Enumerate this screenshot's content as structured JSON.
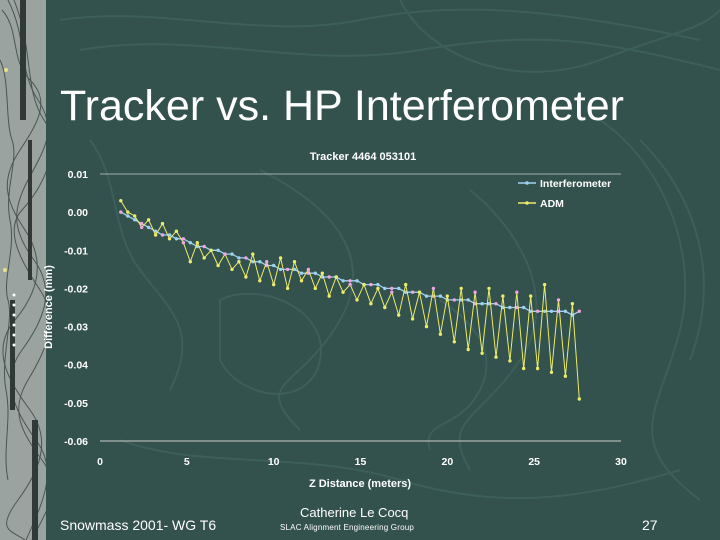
{
  "slide": {
    "title": "Tracker vs. HP Interferometer",
    "footer_left": "Snowmass 2001- WG T6",
    "footer_author": "Catherine Le Cocq",
    "footer_group": "SLAC  Alignment Engineering Group",
    "page_number": "27"
  },
  "colors": {
    "background": "#33514d",
    "contour": "#3d5f5a",
    "interferometer": "#9fd2f2",
    "adm": "#ecec6a",
    "marker_pink": "#f2a6e0",
    "axis": "#cccccc",
    "text": "#ffffff"
  },
  "chart_data": {
    "type": "line",
    "title": "Tracker 4464 053101",
    "xlabel": "Z Distance (meters)",
    "ylabel": "Difference (mm)",
    "xlim": [
      0,
      30
    ],
    "ylim": [
      -0.06,
      0.01
    ],
    "x_ticks": [
      "0",
      "5",
      "10",
      "15",
      "20",
      "25",
      "30"
    ],
    "y_ticks": [
      "0.01",
      "0.00",
      "-0.01",
      "-0.02",
      "-0.03",
      "-0.04",
      "-0.05",
      "-0.06"
    ],
    "grid": false,
    "legend_position": "top-right",
    "series": [
      {
        "name": "Interferometer",
        "color": "#9fd2f2",
        "points": [
          [
            1.2,
            0.0
          ],
          [
            1.6,
            -0.001
          ],
          [
            2.0,
            -0.002
          ],
          [
            2.4,
            -0.003
          ],
          [
            2.8,
            -0.004
          ],
          [
            3.2,
            -0.005
          ],
          [
            3.6,
            -0.006
          ],
          [
            4.0,
            -0.006
          ],
          [
            4.4,
            -0.007
          ],
          [
            4.8,
            -0.007
          ],
          [
            5.2,
            -0.008
          ],
          [
            5.6,
            -0.009
          ],
          [
            6.0,
            -0.009
          ],
          [
            6.4,
            -0.01
          ],
          [
            6.8,
            -0.01
          ],
          [
            7.2,
            -0.011
          ],
          [
            7.6,
            -0.011
          ],
          [
            8.0,
            -0.012
          ],
          [
            8.4,
            -0.012
          ],
          [
            8.8,
            -0.013
          ],
          [
            9.2,
            -0.013
          ],
          [
            9.6,
            -0.014
          ],
          [
            10.0,
            -0.014
          ],
          [
            10.4,
            -0.015
          ],
          [
            10.8,
            -0.015
          ],
          [
            11.2,
            -0.015
          ],
          [
            11.6,
            -0.016
          ],
          [
            12.0,
            -0.016
          ],
          [
            12.4,
            -0.016
          ],
          [
            12.8,
            -0.017
          ],
          [
            13.2,
            -0.017
          ],
          [
            13.6,
            -0.017
          ],
          [
            14.0,
            -0.018
          ],
          [
            14.4,
            -0.018
          ],
          [
            14.8,
            -0.018
          ],
          [
            15.2,
            -0.019
          ],
          [
            15.6,
            -0.019
          ],
          [
            16.0,
            -0.019
          ],
          [
            16.4,
            -0.02
          ],
          [
            16.8,
            -0.02
          ],
          [
            17.2,
            -0.02
          ],
          [
            17.6,
            -0.021
          ],
          [
            18.0,
            -0.021
          ],
          [
            18.4,
            -0.021
          ],
          [
            18.8,
            -0.022
          ],
          [
            19.2,
            -0.022
          ],
          [
            19.6,
            -0.022
          ],
          [
            20.0,
            -0.023
          ],
          [
            20.4,
            -0.023
          ],
          [
            20.8,
            -0.023
          ],
          [
            21.2,
            -0.023
          ],
          [
            21.6,
            -0.024
          ],
          [
            22.0,
            -0.024
          ],
          [
            22.4,
            -0.024
          ],
          [
            22.8,
            -0.024
          ],
          [
            23.2,
            -0.025
          ],
          [
            23.6,
            -0.025
          ],
          [
            24.0,
            -0.025
          ],
          [
            24.4,
            -0.025
          ],
          [
            24.8,
            -0.026
          ],
          [
            25.2,
            -0.026
          ],
          [
            25.6,
            -0.026
          ],
          [
            26.0,
            -0.026
          ],
          [
            26.4,
            -0.026
          ],
          [
            26.8,
            -0.026
          ],
          [
            27.2,
            -0.027
          ],
          [
            27.6,
            -0.026
          ]
        ]
      },
      {
        "name": "ADM",
        "color": "#ecec6a",
        "points": [
          [
            1.2,
            0.003
          ],
          [
            1.6,
            0.0
          ],
          [
            2.0,
            -0.001
          ],
          [
            2.4,
            -0.004
          ],
          [
            2.8,
            -0.002
          ],
          [
            3.2,
            -0.006
          ],
          [
            3.6,
            -0.003
          ],
          [
            4.0,
            -0.007
          ],
          [
            4.4,
            -0.005
          ],
          [
            4.8,
            -0.008
          ],
          [
            5.2,
            -0.013
          ],
          [
            5.6,
            -0.008
          ],
          [
            6.0,
            -0.012
          ],
          [
            6.4,
            -0.01
          ],
          [
            6.8,
            -0.014
          ],
          [
            7.2,
            -0.011
          ],
          [
            7.6,
            -0.015
          ],
          [
            8.0,
            -0.013
          ],
          [
            8.4,
            -0.017
          ],
          [
            8.8,
            -0.011
          ],
          [
            9.2,
            -0.018
          ],
          [
            9.6,
            -0.013
          ],
          [
            10.0,
            -0.019
          ],
          [
            10.4,
            -0.012
          ],
          [
            10.8,
            -0.02
          ],
          [
            11.2,
            -0.013
          ],
          [
            11.6,
            -0.018
          ],
          [
            12.0,
            -0.015
          ],
          [
            12.4,
            -0.02
          ],
          [
            12.8,
            -0.016
          ],
          [
            13.2,
            -0.022
          ],
          [
            13.6,
            -0.017
          ],
          [
            14.0,
            -0.021
          ],
          [
            14.4,
            -0.019
          ],
          [
            14.8,
            -0.023
          ],
          [
            15.2,
            -0.019
          ],
          [
            15.6,
            -0.024
          ],
          [
            16.0,
            -0.02
          ],
          [
            16.4,
            -0.025
          ],
          [
            16.8,
            -0.021
          ],
          [
            17.2,
            -0.027
          ],
          [
            17.6,
            -0.019
          ],
          [
            18.0,
            -0.028
          ],
          [
            18.4,
            -0.021
          ],
          [
            18.8,
            -0.03
          ],
          [
            19.2,
            -0.02
          ],
          [
            19.6,
            -0.032
          ],
          [
            20.0,
            -0.022
          ],
          [
            20.4,
            -0.034
          ],
          [
            20.8,
            -0.02
          ],
          [
            21.2,
            -0.036
          ],
          [
            21.6,
            -0.021
          ],
          [
            22.0,
            -0.037
          ],
          [
            22.4,
            -0.02
          ],
          [
            22.8,
            -0.038
          ],
          [
            23.2,
            -0.022
          ],
          [
            23.6,
            -0.039
          ],
          [
            24.0,
            -0.021
          ],
          [
            24.4,
            -0.041
          ],
          [
            24.8,
            -0.022
          ],
          [
            25.2,
            -0.041
          ],
          [
            25.6,
            -0.019
          ],
          [
            26.0,
            -0.042
          ],
          [
            26.4,
            -0.023
          ],
          [
            26.8,
            -0.043
          ],
          [
            27.2,
            -0.024
          ],
          [
            27.6,
            -0.049
          ]
        ]
      }
    ]
  }
}
